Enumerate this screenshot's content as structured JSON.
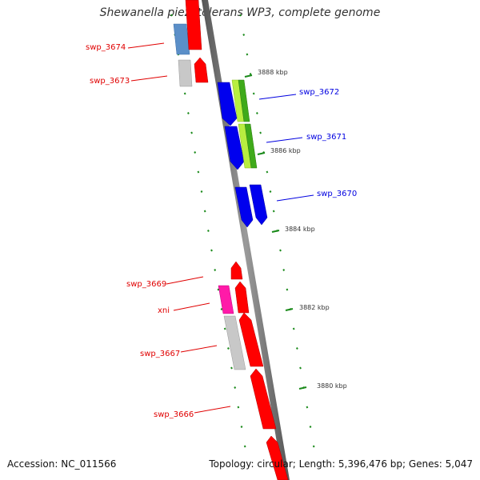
{
  "title": "Shewanella piezotolerans WP3, complete genome",
  "accession": "Accession: NC_011566",
  "summary": "Topology: circular; Length: 5,396,476 bp; Genes: 5,047",
  "ticks": [
    {
      "label": "3888 kbp"
    },
    {
      "label": "3886 kbp"
    },
    {
      "label": "3884 kbp"
    },
    {
      "label": "3882 kbp"
    },
    {
      "label": "3880 kbp"
    }
  ],
  "reverse_genes": [
    {
      "label": "swp_3674",
      "color": "#e00000"
    },
    {
      "label": "swp_3673",
      "color": "#e00000"
    },
    {
      "label": "swp_3669",
      "color": "#e00000"
    },
    {
      "label": "xni",
      "color": "#e00000"
    },
    {
      "label": "swp_3667",
      "color": "#e00000"
    },
    {
      "label": "swp_3666",
      "color": "#e00000"
    }
  ],
  "forward_genes": [
    {
      "label": "swp_3672",
      "color": "#0000e0"
    },
    {
      "label": "swp_3671",
      "color": "#0000e0"
    },
    {
      "label": "swp_3670",
      "color": "#0000e0"
    }
  ],
  "colors": {
    "backbone": "#888888",
    "backbone_shadow": "#bbbbbb",
    "ticks": "#1a8a1a",
    "gene_red": "#ff0000",
    "gene_blue": "#0000ee",
    "gene_steelblue": "#5b8fc8",
    "gene_grey": "#c8c8c8",
    "gene_pink": "#ff1aa8",
    "gene_green": "#3faa1a",
    "gene_lightgreen": "#b8ee40"
  }
}
